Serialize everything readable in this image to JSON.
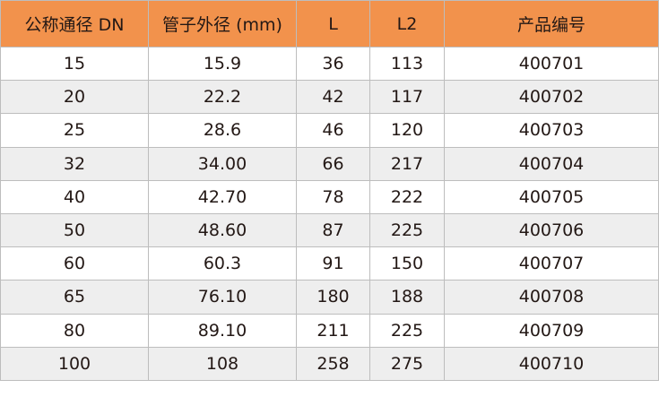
{
  "colors": {
    "header_bg": "#f2924c",
    "alt_row_bg": "#eeeeee",
    "border": "#bdbdbd"
  },
  "headers": [
    "公称通径 DN",
    "管子外径 (mm)",
    "L",
    "L2",
    "产品编号"
  ],
  "rows": [
    [
      "15",
      "15.9",
      "36",
      "113",
      "400701"
    ],
    [
      "20",
      "22.2",
      "42",
      "117",
      "400702"
    ],
    [
      "25",
      "28.6",
      "46",
      "120",
      "400703"
    ],
    [
      "32",
      "34.00",
      "66",
      "217",
      "400704"
    ],
    [
      "40",
      "42.70",
      "78",
      "222",
      "400705"
    ],
    [
      "50",
      "48.60",
      "87",
      "225",
      "400706"
    ],
    [
      "60",
      "60.3",
      "91",
      "150",
      "400707"
    ],
    [
      "65",
      "76.10",
      "180",
      "188",
      "400708"
    ],
    [
      "80",
      "89.10",
      "211",
      "225",
      "400709"
    ],
    [
      "100",
      "108",
      "258",
      "275",
      "400710"
    ]
  ]
}
